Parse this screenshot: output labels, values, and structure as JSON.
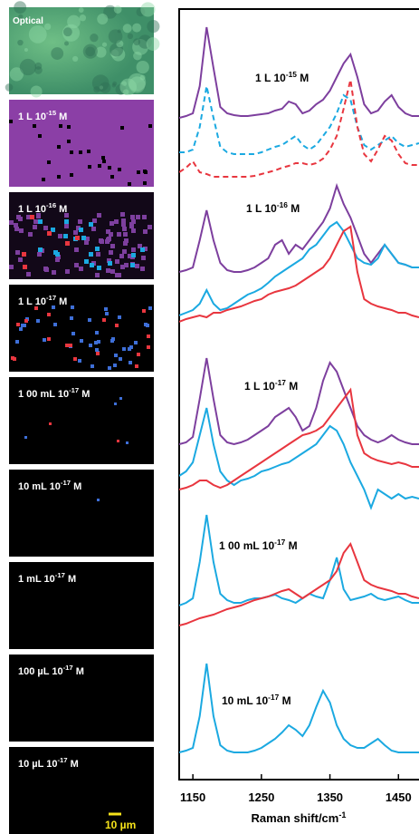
{
  "panels": [
    {
      "label": {
        "text": "Optical"
      }
    },
    {
      "label": {
        "text": "1 L 10",
        "sup": "-15",
        "suffix": " M"
      }
    },
    {
      "label": {
        "text": "1 L 10",
        "sup": "-16",
        "suffix": " M"
      }
    },
    {
      "label": {
        "text": "1 L 10",
        "sup": "-17",
        "suffix": " M"
      }
    },
    {
      "label": {
        "text": "1 00 mL 10",
        "sup": "-17",
        "suffix": " M"
      }
    },
    {
      "label": {
        "text": "10 mL 10",
        "sup": "-17",
        "suffix": " M"
      }
    },
    {
      "label": {
        "text": "1 mL 10",
        "sup": "-17",
        "suffix": " M"
      }
    },
    {
      "label": {
        "text": "100  µL 10",
        "sup": "-17",
        "suffix": " M"
      }
    },
    {
      "label": {
        "text": "10  µL 10",
        "sup": "-17",
        "suffix": " M"
      }
    }
  ],
  "scale_bar": "10 µm",
  "chart_data": {
    "type": "line",
    "x_label": {
      "text": "Raman shift/cm",
      "sup": "-1"
    },
    "xlim": [
      1130,
      1480
    ],
    "xticks": [
      1150,
      1250,
      1350,
      1450
    ],
    "ylim": [
      0,
      850
    ],
    "annotations": [
      {
        "text": "1 L 10",
        "sup": "-15",
        "suffix": " M"
      },
      {
        "text": "1 L 10",
        "sup": "-16",
        "suffix": " M"
      },
      {
        "text": "1 L 10",
        "sup": "-17",
        "suffix": " M"
      },
      {
        "text": "1 00 mL 10",
        "sup": "-17",
        "suffix": " M"
      },
      {
        "text": "10 mL 10",
        "sup": "-17",
        "suffix": " M"
      }
    ],
    "x": [
      1130,
      1140,
      1150,
      1160,
      1170,
      1180,
      1190,
      1200,
      1210,
      1220,
      1230,
      1240,
      1250,
      1260,
      1270,
      1280,
      1290,
      1300,
      1310,
      1320,
      1330,
      1340,
      1350,
      1360,
      1370,
      1380,
      1390,
      1400,
      1410,
      1420,
      1430,
      1440,
      1450,
      1460,
      1470,
      1480
    ],
    "series": [
      {
        "color": "#7d3f9e",
        "dashed": false,
        "values": [
          730,
          732,
          735,
          765,
          830,
          785,
          742,
          735,
          733,
          732,
          732,
          733,
          734,
          735,
          738,
          740,
          748,
          745,
          735,
          738,
          745,
          750,
          760,
          775,
          790,
          800,
          775,
          745,
          735,
          738,
          748,
          755,
          742,
          735,
          732,
          732
        ]
      },
      {
        "color": "#1ba9e1",
        "dashed": true,
        "values": [
          692,
          692,
          695,
          720,
          765,
          730,
          698,
          692,
          690,
          690,
          690,
          690,
          692,
          695,
          698,
          700,
          705,
          710,
          700,
          695,
          700,
          710,
          720,
          735,
          755,
          750,
          720,
          700,
          695,
          700,
          705,
          710,
          702,
          698,
          700,
          702
        ]
      },
      {
        "color": "#e8363f",
        "dashed": true,
        "values": [
          670,
          675,
          682,
          670,
          668,
          665,
          665,
          665,
          665,
          665,
          665,
          666,
          668,
          670,
          672,
          675,
          677,
          680,
          680,
          678,
          680,
          685,
          695,
          710,
          740,
          772,
          720,
          690,
          682,
          695,
          710,
          705,
          690,
          680,
          678,
          678
        ]
      },
      {
        "color": "#7d3f9e",
        "dashed": false,
        "values": [
          560,
          562,
          565,
          595,
          628,
          595,
          570,
          562,
          560,
          560,
          562,
          565,
          570,
          575,
          590,
          595,
          580,
          590,
          585,
          595,
          605,
          615,
          630,
          655,
          635,
          620,
          600,
          580,
          570,
          580,
          590,
          580,
          570,
          568,
          565,
          565
        ]
      },
      {
        "color": "#1ba9e1",
        "dashed": false,
        "values": [
          512,
          515,
          518,
          525,
          540,
          525,
          518,
          520,
          525,
          530,
          535,
          538,
          542,
          548,
          555,
          560,
          565,
          570,
          575,
          585,
          590,
          600,
          610,
          615,
          605,
          590,
          575,
          570,
          568,
          575,
          590,
          580,
          570,
          568,
          565,
          565
        ]
      },
      {
        "color": "#e8363f",
        "dashed": false,
        "values": [
          505,
          508,
          510,
          512,
          510,
          515,
          515,
          518,
          520,
          522,
          525,
          528,
          530,
          535,
          538,
          540,
          542,
          545,
          550,
          555,
          560,
          565,
          575,
          590,
          605,
          610,
          560,
          530,
          525,
          522,
          520,
          518,
          515,
          515,
          512,
          510
        ]
      },
      {
        "color": "#7d3f9e",
        "dashed": false,
        "values": [
          370,
          372,
          378,
          420,
          465,
          420,
          380,
          372,
          370,
          372,
          375,
          380,
          385,
          390,
          400,
          405,
          410,
          400,
          385,
          390,
          410,
          440,
          460,
          450,
          430,
          410,
          390,
          380,
          375,
          372,
          375,
          380,
          375,
          372,
          370,
          370
        ]
      },
      {
        "color": "#1ba9e1",
        "dashed": false,
        "values": [
          335,
          340,
          350,
          380,
          410,
          370,
          340,
          330,
          325,
          330,
          332,
          335,
          340,
          342,
          345,
          348,
          350,
          355,
          360,
          365,
          370,
          380,
          390,
          385,
          370,
          350,
          335,
          320,
          300,
          320,
          315,
          310,
          315,
          310,
          312,
          310
        ]
      },
      {
        "color": "#e8363f",
        "dashed": false,
        "values": [
          320,
          322,
          325,
          330,
          330,
          325,
          322,
          325,
          330,
          335,
          340,
          345,
          350,
          355,
          360,
          365,
          370,
          375,
          380,
          382,
          385,
          390,
          400,
          410,
          420,
          430,
          380,
          360,
          355,
          352,
          350,
          348,
          350,
          348,
          345,
          345
        ]
      },
      {
        "color": "#1ba9e1",
        "dashed": false,
        "values": [
          192,
          195,
          200,
          240,
          292,
          240,
          205,
          198,
          195,
          195,
          198,
          200,
          200,
          202,
          204,
          200,
          198,
          195,
          200,
          205,
          202,
          200,
          220,
          245,
          210,
          198,
          200,
          202,
          205,
          200,
          198,
          200,
          202,
          198,
          195,
          195
        ]
      },
      {
        "color": "#e8363f",
        "dashed": false,
        "values": [
          170,
          172,
          175,
          178,
          180,
          182,
          185,
          188,
          190,
          192,
          195,
          198,
          200,
          202,
          205,
          208,
          210,
          205,
          200,
          205,
          210,
          215,
          220,
          230,
          250,
          260,
          240,
          220,
          215,
          212,
          210,
          208,
          205,
          205,
          202,
          200
        ]
      },
      {
        "color": "#1ba9e1",
        "dashed": false,
        "values": [
          30,
          32,
          35,
          70,
          128,
          70,
          38,
          32,
          30,
          30,
          30,
          32,
          35,
          40,
          45,
          52,
          60,
          55,
          48,
          60,
          80,
          98,
          85,
          60,
          45,
          38,
          35,
          35,
          40,
          45,
          38,
          32,
          30,
          30,
          30,
          30
        ]
      }
    ]
  }
}
